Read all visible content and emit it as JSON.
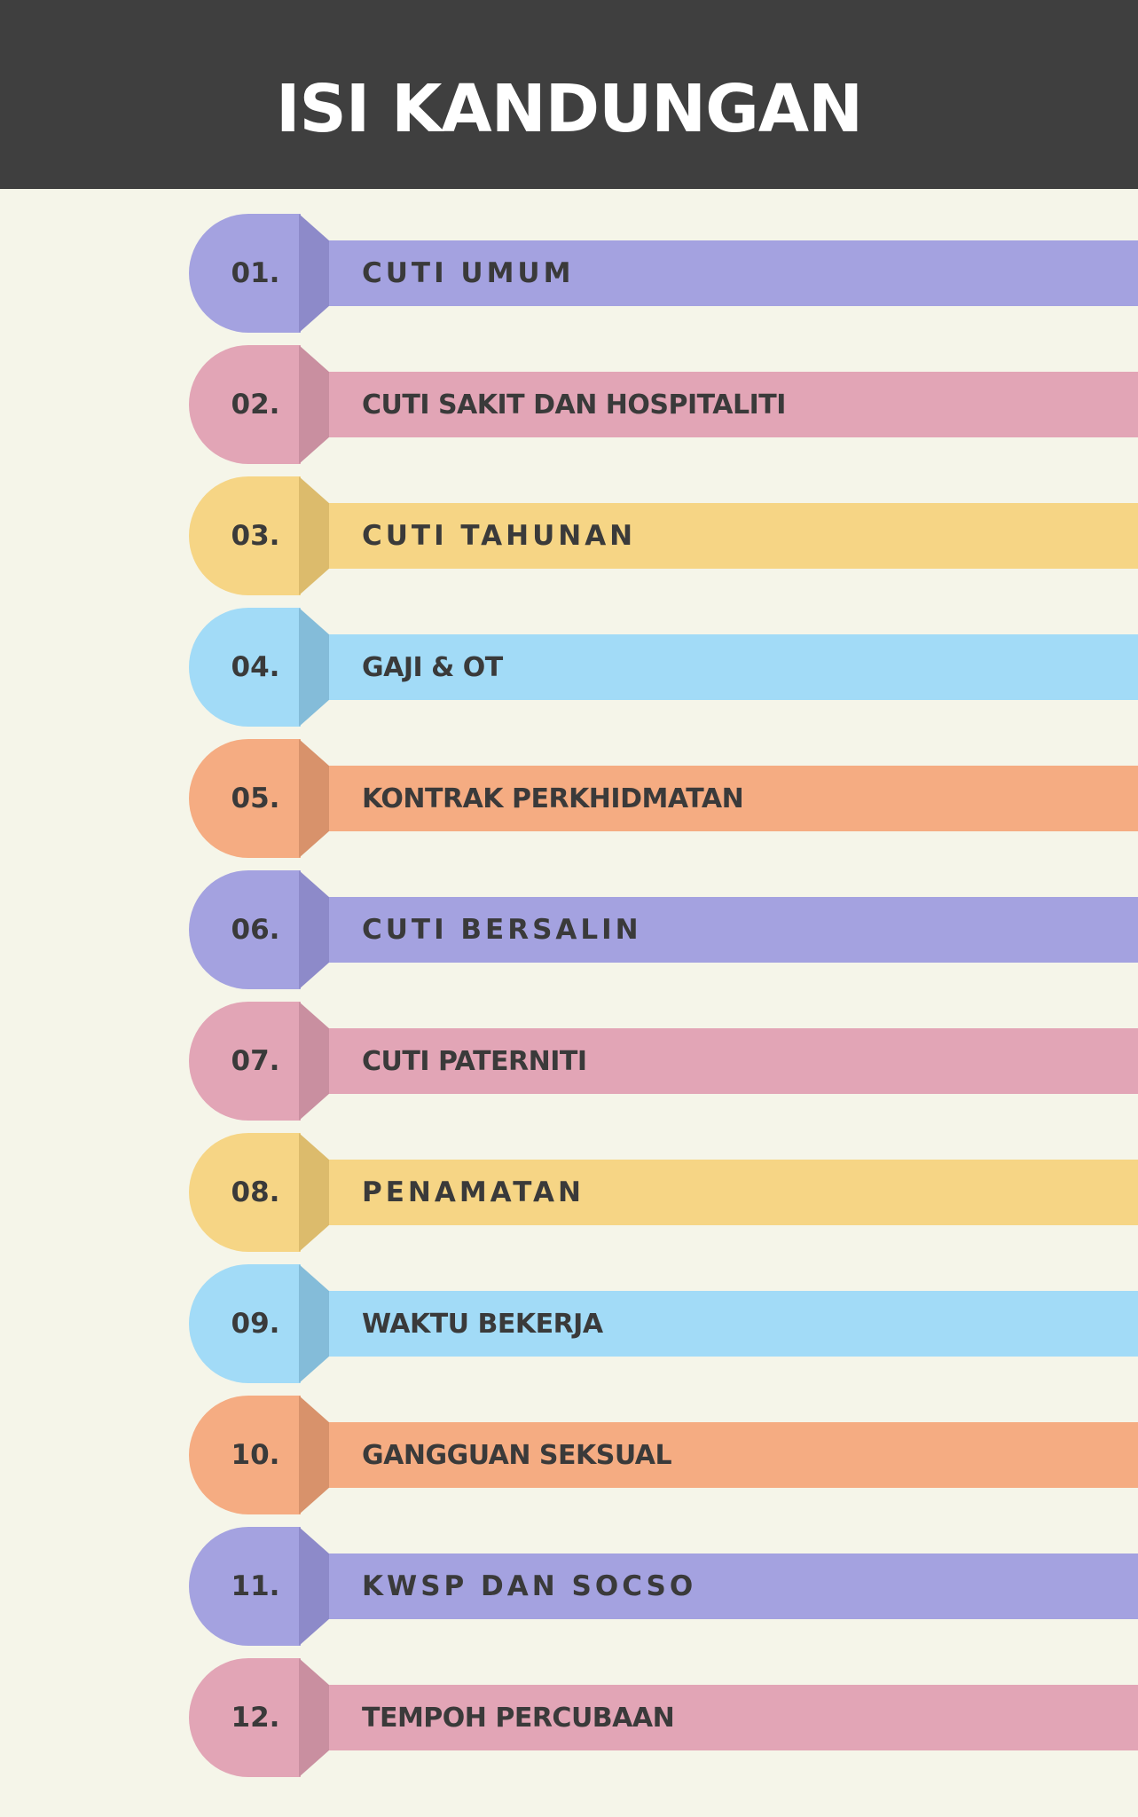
{
  "header": {
    "title": "ISI KANDUNGAN"
  },
  "colors": {
    "background": "#f5f5e9",
    "header": "#3f3f3f",
    "purple": "#a4a2e0",
    "pink": "#e2a5b6",
    "yellow": "#f6d585",
    "blue": "#a2dbf7",
    "orange": "#f5ac82"
  },
  "items": [
    {
      "number": "01.",
      "label": "CUTI UMUM",
      "color": "purple"
    },
    {
      "number": "02.",
      "label": "CUTI SAKIT DAN HOSPITALITI",
      "color": "pink"
    },
    {
      "number": "03.",
      "label": "CUTI TAHUNAN",
      "color": "yellow"
    },
    {
      "number": "04.",
      "label": "GAJI & OT",
      "color": "blue"
    },
    {
      "number": "05.",
      "label": "KONTRAK PERKHIDMATAN",
      "color": "orange"
    },
    {
      "number": "06.",
      "label": "CUTI BERSALIN",
      "color": "purple"
    },
    {
      "number": "07.",
      "label": "CUTI PATERNITI",
      "color": "pink"
    },
    {
      "number": "08.",
      "label": "PENAMATAN",
      "color": "yellow"
    },
    {
      "number": "09.",
      "label": "WAKTU BEKERJA",
      "color": "blue"
    },
    {
      "number": "10.",
      "label": "GANGGUAN SEKSUAL",
      "color": "orange"
    },
    {
      "number": "11.",
      "label": "KWSP DAN SOCSO",
      "color": "purple"
    },
    {
      "number": "12.",
      "label": "TEMPOH PERCUBAAN",
      "color": "pink"
    }
  ]
}
